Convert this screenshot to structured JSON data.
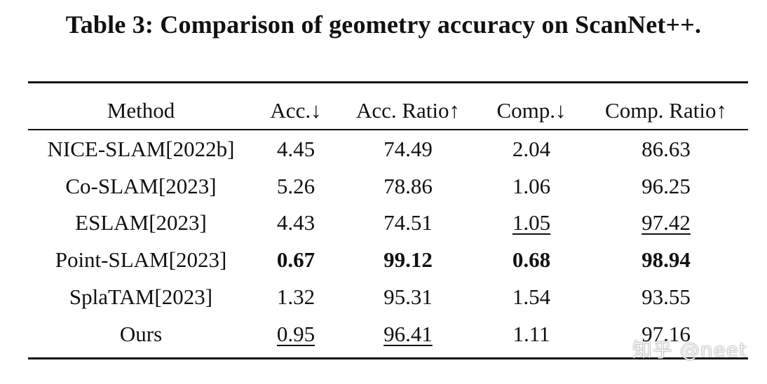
{
  "caption": "Table 3: Comparison of geometry accuracy on ScanNet++.",
  "table": {
    "headers": [
      "Method",
      "Acc.↓",
      "Acc. Ratio↑",
      "Comp.↓",
      "Comp. Ratio↑"
    ],
    "rows": [
      {
        "cells": [
          "NICE-SLAM[2022b]",
          "4.45",
          "74.49",
          "2.04",
          "86.63"
        ],
        "bold": [
          false,
          false,
          false,
          false,
          false
        ],
        "underline": [
          false,
          false,
          false,
          false,
          false
        ]
      },
      {
        "cells": [
          "Co-SLAM[2023]",
          "5.26",
          "78.86",
          "1.06",
          "96.25"
        ],
        "bold": [
          false,
          false,
          false,
          false,
          false
        ],
        "underline": [
          false,
          false,
          false,
          false,
          false
        ]
      },
      {
        "cells": [
          "ESLAM[2023]",
          "4.43",
          "74.51",
          "1.05",
          "97.42"
        ],
        "bold": [
          false,
          false,
          false,
          false,
          false
        ],
        "underline": [
          false,
          false,
          false,
          true,
          true
        ]
      },
      {
        "cells": [
          "Point-SLAM[2023]",
          "0.67",
          "99.12",
          "0.68",
          "98.94"
        ],
        "bold": [
          false,
          true,
          true,
          true,
          true
        ],
        "underline": [
          false,
          false,
          false,
          false,
          false
        ]
      },
      {
        "cells": [
          "SplaTAM[2023]",
          "1.32",
          "95.31",
          "1.54",
          "93.55"
        ],
        "bold": [
          false,
          false,
          false,
          false,
          false
        ],
        "underline": [
          false,
          false,
          false,
          false,
          false
        ]
      },
      {
        "cells": [
          "Ours",
          "0.95",
          "96.41",
          "1.11",
          "97.16"
        ],
        "bold": [
          false,
          false,
          false,
          false,
          false
        ],
        "underline": [
          false,
          true,
          true,
          false,
          false
        ]
      }
    ]
  },
  "watermark": "知乎 @neet"
}
